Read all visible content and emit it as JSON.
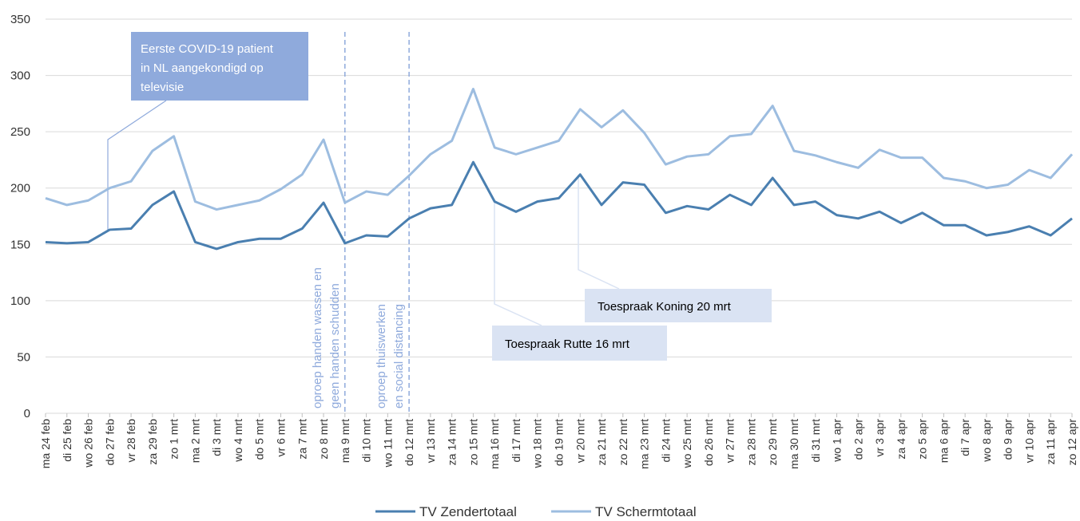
{
  "chart_data": {
    "type": "line",
    "categories": [
      "ma 24 feb",
      "di 25 feb",
      "wo 26 feb",
      "do 27 feb",
      "vr 28 feb",
      "za 29 feb",
      "zo 1 mrt",
      "ma 2 mrt",
      "di 3 mrt",
      "wo 4 mrt",
      "do 5 mrt",
      "vr 6 mrt",
      "za 7 mrt",
      "zo 8 mrt",
      "ma 9 mrt",
      "di 10 mrt",
      "wo 11 mrt",
      "do 12 mrt",
      "vr 13 mrt",
      "za 14 mrt",
      "zo 15 mrt",
      "ma 16 mrt",
      "di 17 mrt",
      "wo 18 mrt",
      "do 19 mrt",
      "vr 20 mrt",
      "za 21 mrt",
      "zo 22 mrt",
      "ma 23 mrt",
      "di 24 mrt",
      "wo 25 mrt",
      "do 26 mrt",
      "vr 27 mrt",
      "za 28 mrt",
      "zo 29 mrt",
      "ma 30 mrt",
      "di 31 mrt",
      "wo 1 apr",
      "do 2 apr",
      "vr 3 apr",
      "za 4 apr",
      "zo 5 apr",
      "ma 6 apr",
      "di 7 apr",
      "wo 8 apr",
      "do 9 apr",
      "vr 10 apr",
      "za 11 apr",
      "zo 12 apr"
    ],
    "series": [
      {
        "name": "TV Zendertotaal",
        "color": "#4a7fb0",
        "values": [
          152,
          151,
          152,
          163,
          164,
          185,
          197,
          152,
          146,
          152,
          155,
          155,
          164,
          187,
          151,
          158,
          157,
          173,
          182,
          185,
          223,
          188,
          179,
          188,
          191,
          212,
          185,
          205,
          203,
          178,
          184,
          181,
          194,
          185,
          209,
          185,
          188,
          176,
          173,
          179,
          169,
          178,
          167,
          167,
          158,
          161,
          166,
          158,
          173
        ]
      },
      {
        "name": "TV Schermtotaal",
        "color": "#9dbde0",
        "values": [
          191,
          185,
          189,
          200,
          206,
          233,
          246,
          188,
          181,
          185,
          189,
          199,
          212,
          243,
          187,
          197,
          194,
          211,
          230,
          242,
          288,
          236,
          230,
          236,
          242,
          270,
          254,
          269,
          249,
          221,
          228,
          230,
          246,
          248,
          273,
          233,
          229,
          223,
          218,
          234,
          227,
          227,
          209,
          206,
          200,
          203,
          216,
          209,
          230
        ]
      }
    ],
    "ylim": [
      0,
      350
    ],
    "yticks": [
      0,
      50,
      100,
      150,
      200,
      250,
      300,
      350
    ],
    "grid": true,
    "legend": "bottom",
    "annotations": {
      "covid": [
        "Eerste COVID-19 patient",
        "in NL aangekondigd op",
        "televisie"
      ],
      "handen": [
        "oproep handen wassen en",
        "geen handen schudden"
      ],
      "thuis": [
        "oproep thuiswerken",
        "en social distancing"
      ],
      "rutte": "Toespraak Rutte 16 mrt",
      "koning": "Toespraak Koning 20 mrt"
    }
  }
}
